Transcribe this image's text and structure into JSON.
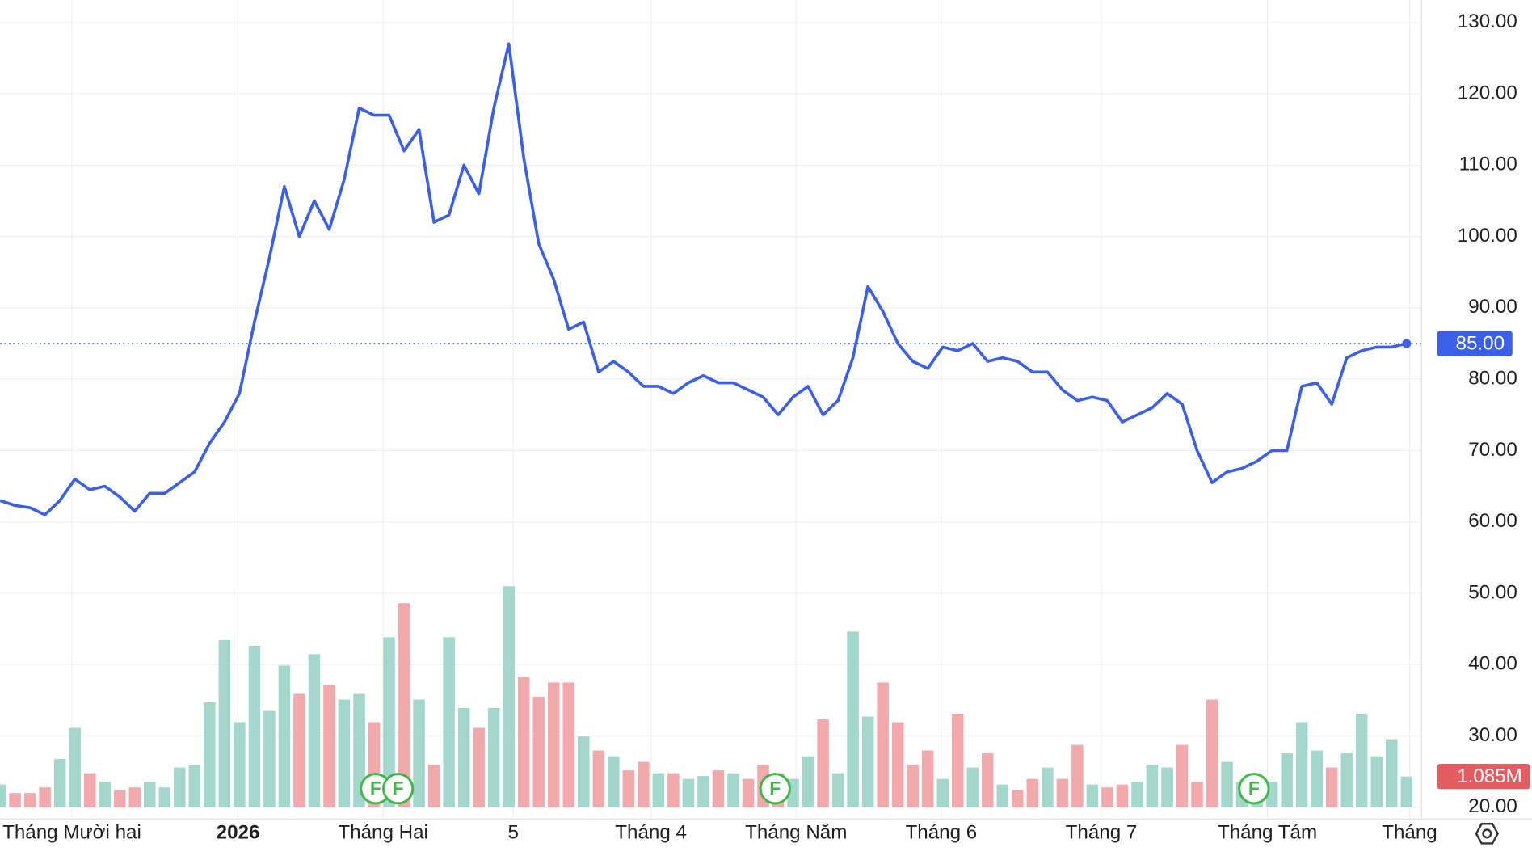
{
  "chart_data": {
    "type": "line",
    "x": [
      0,
      1,
      2,
      3,
      4,
      5,
      6,
      7,
      8,
      9,
      10,
      11,
      12,
      13,
      14,
      15,
      16,
      17,
      18,
      19,
      20,
      21,
      22,
      23,
      24,
      25,
      26,
      27,
      28,
      29,
      30,
      31,
      32,
      33,
      34,
      35,
      36,
      37,
      38,
      39,
      40,
      41,
      42,
      43,
      44,
      45,
      46,
      47,
      48,
      49,
      50,
      51,
      52,
      53,
      54,
      55,
      56,
      57,
      58,
      59,
      60,
      61,
      62,
      63,
      64,
      65,
      66,
      67,
      68,
      69,
      70,
      71,
      72,
      73,
      74,
      75,
      76,
      77,
      78,
      79,
      80,
      81,
      82,
      83,
      84,
      85,
      86,
      87,
      88,
      89,
      90,
      91,
      92,
      93,
      94
    ],
    "series": [
      {
        "name": "Price",
        "color": "#3b5fe6",
        "values": [
          63,
          62.3,
          62,
          61,
          63,
          66,
          64.5,
          65,
          63.5,
          61.5,
          64,
          64,
          65.5,
          67,
          71,
          74,
          78,
          88,
          97,
          107,
          100,
          105,
          101,
          108,
          118,
          117,
          117,
          112,
          115,
          102,
          103,
          110,
          106,
          118,
          127,
          111,
          99,
          94,
          87,
          88,
          81,
          82.5,
          81,
          79,
          79,
          78,
          79.5,
          80.5,
          79.5,
          79.5,
          78.5,
          77.5,
          75,
          77.5,
          79,
          75,
          77,
          83,
          93,
          89.5,
          85,
          82.5,
          81.5,
          84.5,
          84,
          85,
          82.5,
          83,
          82.5,
          81,
          81,
          78.5,
          77,
          77.5,
          77,
          74,
          75,
          76,
          78,
          76.5,
          70,
          65.5,
          67,
          67.5,
          68.5,
          70,
          70,
          79,
          79.5,
          76.5,
          83,
          84,
          84.5,
          84.5,
          85
        ]
      },
      {
        "name": "Volume",
        "type": "bar",
        "up_color": "#a3d7cb",
        "down_color": "#f2a9ab",
        "values": [
          0.8,
          0.5,
          0.5,
          0.7,
          1.7,
          2.8,
          1.2,
          0.9,
          0.6,
          0.7,
          0.9,
          0.7,
          1.4,
          1.5,
          3.7,
          5.9,
          3.0,
          5.7,
          3.4,
          5.0,
          4.0,
          5.4,
          4.3,
          3.8,
          4.0,
          3.0,
          6.0,
          7.2,
          3.8,
          1.5,
          6.0,
          3.5,
          2.8,
          3.5,
          7.8,
          4.6,
          3.9,
          4.4,
          4.4,
          2.5,
          2.0,
          1.8,
          1.3,
          1.6,
          1.2,
          1.2,
          1.0,
          1.1,
          1.3,
          1.2,
          1.0,
          1.5,
          1.2,
          1.0,
          1.8,
          3.1,
          1.2,
          6.2,
          3.2,
          4.4,
          3.0,
          1.5,
          2.0,
          1.0,
          3.3,
          1.4,
          1.9,
          0.8,
          0.6,
          1.0,
          1.4,
          1.0,
          2.2,
          0.8,
          0.7,
          0.8,
          0.9,
          1.5,
          1.4,
          2.2,
          0.9,
          3.8,
          1.6,
          0.9,
          0.9,
          0.9,
          1.9,
          3.0,
          2.0,
          1.4,
          1.9,
          3.3,
          1.8,
          2.4,
          1.085
        ]
      }
    ],
    "xlim": [
      0,
      95
    ],
    "xticks": [
      {
        "value": 4.8,
        "label": "Tháng Mười hai"
      },
      {
        "value": 15.9,
        "label": "2026"
      },
      {
        "value": 25.6,
        "label": "Tháng Hai"
      },
      {
        "value": 34.3,
        "label": "5"
      },
      {
        "value": 43.5,
        "label": "Tháng 4"
      },
      {
        "value": 53.2,
        "label": "Tháng Năm"
      },
      {
        "value": 62.9,
        "label": "Tháng 6"
      },
      {
        "value": 73.6,
        "label": "Tháng 7"
      },
      {
        "value": 84.7,
        "label": "Tháng Tám"
      },
      {
        "value": 94.2,
        "label": "Tháng"
      }
    ],
    "ylim": [
      18.36,
      133.15
    ],
    "yticks": [
      {
        "value": 20,
        "label": "20.00"
      },
      {
        "value": 30,
        "label": "30.00"
      },
      {
        "value": 40,
        "label": "40.00"
      },
      {
        "value": 50,
        "label": "50.00"
      },
      {
        "value": 60,
        "label": "60.00"
      },
      {
        "value": 70,
        "label": "70.00"
      },
      {
        "value": 80,
        "label": "80.00"
      },
      {
        "value": 90,
        "label": "90.00"
      },
      {
        "value": 100,
        "label": "100.00"
      },
      {
        "value": 110,
        "label": "110.00"
      },
      {
        "value": 120,
        "label": "120.00"
      },
      {
        "value": 130,
        "label": "130.00"
      }
    ],
    "price_tag": {
      "value": 85,
      "label": "85.00"
    },
    "volume_tag": {
      "value": 1.085,
      "label": "1.085M"
    },
    "events": [
      {
        "x": 25.1,
        "label": "F"
      },
      {
        "x": 26.6,
        "label": "F"
      },
      {
        "x": 51.8,
        "label": "F"
      },
      {
        "x": 83.8,
        "label": "F"
      }
    ],
    "grid": true
  }
}
